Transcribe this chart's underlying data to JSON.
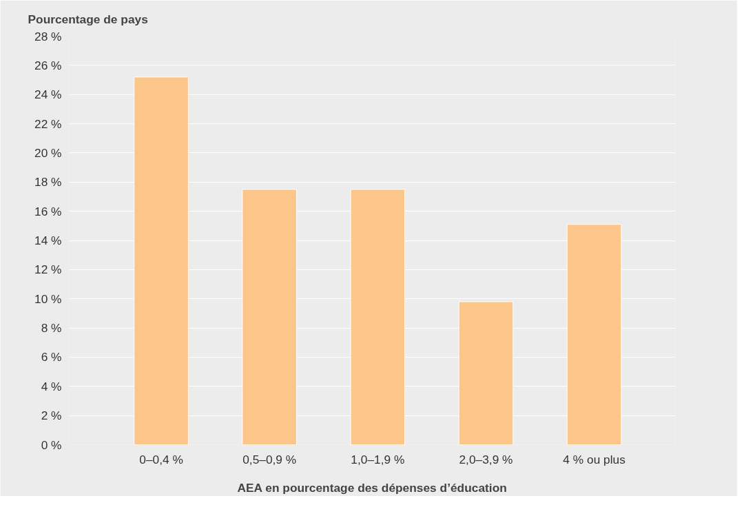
{
  "chart_data": {
    "type": "bar",
    "ylabel": "Pourcentage de pays",
    "xlabel": "AEA en pourcentage des dépenses d’éducation",
    "categories": [
      "0–0,4 %",
      "0,5–0,9 %",
      "1,0–1,9 %",
      "2,0–3,9 %",
      "4 % ou plus"
    ],
    "values": [
      25.2,
      17.5,
      17.5,
      9.8,
      15.1
    ],
    "color": "#fcc589",
    "ylim": [
      0,
      28
    ],
    "yticks": [
      {
        "value": 0,
        "label": "0 %"
      },
      {
        "value": 2,
        "label": "2 %"
      },
      {
        "value": 4,
        "label": "4 %"
      },
      {
        "value": 6,
        "label": "6 %"
      },
      {
        "value": 8,
        "label": "8 %"
      },
      {
        "value": 10,
        "label": "10 %"
      },
      {
        "value": 12,
        "label": "12 %"
      },
      {
        "value": 14,
        "label": "14 %"
      },
      {
        "value": 16,
        "label": "16 %"
      },
      {
        "value": 18,
        "label": "18 %"
      },
      {
        "value": 20,
        "label": "20 %"
      },
      {
        "value": 22,
        "label": "22 %"
      },
      {
        "value": 24,
        "label": "24 %"
      },
      {
        "value": 26,
        "label": "26 %"
      },
      {
        "value": 28,
        "label": "28 %"
      }
    ],
    "grid": "y"
  }
}
